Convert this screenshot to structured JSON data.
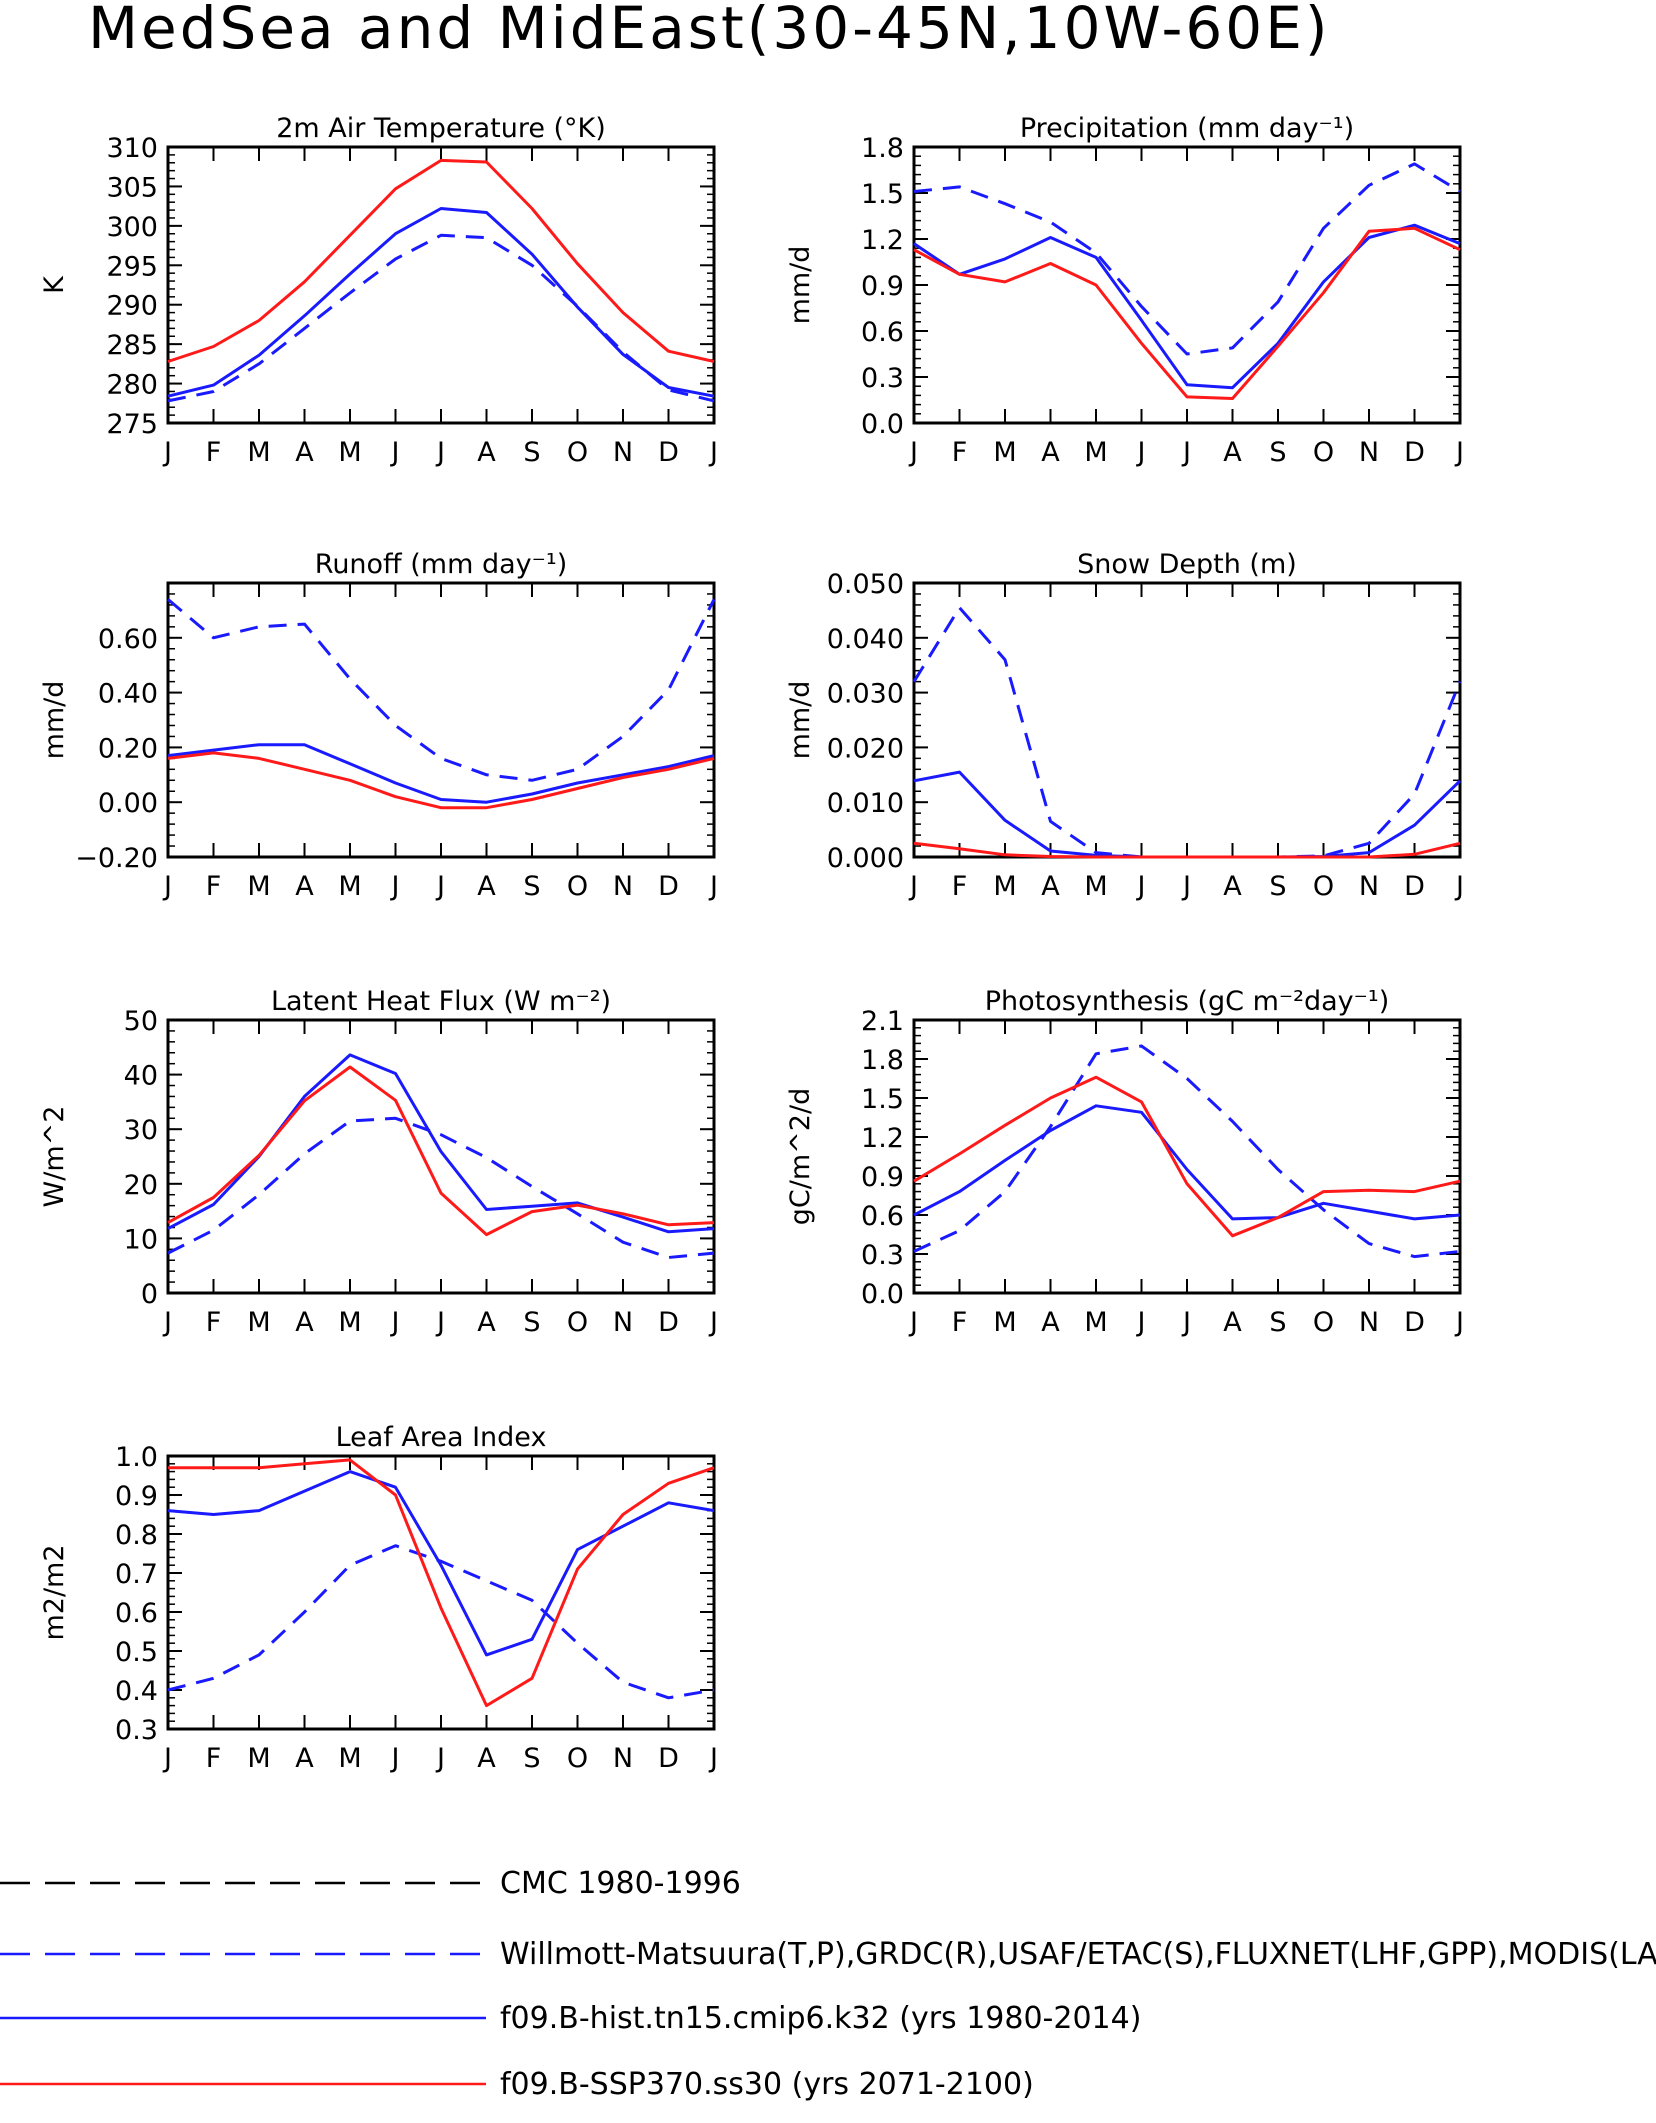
{
  "page_title": "MedSea and MidEast(30-45N,10W-60E)",
  "months": [
    "J",
    "F",
    "M",
    "A",
    "M",
    "J",
    "J",
    "A",
    "S",
    "O",
    "N",
    "D",
    "J"
  ],
  "colors": {
    "obs": "#1a1aff",
    "hist": "#1a1aff",
    "ssp": "#ff1a1a",
    "cmc": "#000000"
  },
  "legend": [
    {
      "label": "CMC 1980-1996",
      "color": "#000000",
      "dashed": true
    },
    {
      "label": "Willmott-Matsuura(T,P),GRDC(R),USAF/ETAC(S),FLUXNET(LHF,GPP),MODIS(LAI)",
      "color": "#1a1aff",
      "dashed": true
    },
    {
      "label": "f09.B-hist.tn15.cmip6.k32 (yrs 1980-2014)",
      "color": "#1a1aff",
      "dashed": false
    },
    {
      "label": "f09.B-SSP370.ss30 (yrs 2071-2100)",
      "color": "#ff1a1a",
      "dashed": false
    }
  ],
  "chart_data": [
    {
      "type": "line",
      "title": "2m Air Temperature (°K)",
      "ylabel": "K",
      "ylim": [
        275,
        310
      ],
      "yticks": [
        "275",
        "280",
        "285",
        "290",
        "295",
        "300",
        "305",
        "310"
      ],
      "categories": [
        "J",
        "F",
        "M",
        "A",
        "M",
        "J",
        "J",
        "A",
        "S",
        "O",
        "N",
        "D",
        "J"
      ],
      "series": [
        {
          "role": "obs",
          "values": [
            277.8,
            279.0,
            282.5,
            287.0,
            291.5,
            295.8,
            298.8,
            298.5,
            295.0,
            289.8,
            284.0,
            279.2,
            277.8
          ]
        },
        {
          "role": "hist",
          "values": [
            278.4,
            279.8,
            283.6,
            288.6,
            293.9,
            299.0,
            302.2,
            301.7,
            296.4,
            289.7,
            283.7,
            279.5,
            278.4
          ]
        },
        {
          "role": "ssp",
          "values": [
            282.8,
            284.7,
            288.0,
            292.9,
            298.8,
            304.7,
            308.3,
            308.1,
            302.2,
            295.2,
            289.0,
            284.1,
            282.8
          ]
        }
      ]
    },
    {
      "type": "line",
      "title": "Precipitation (mm day⁻¹)",
      "ylabel": "mm/d",
      "ylim": [
        0,
        1.8
      ],
      "yticks": [
        "0.0",
        "0.3",
        "0.6",
        "0.9",
        "1.2",
        "1.5",
        "1.8"
      ],
      "categories": [
        "J",
        "F",
        "M",
        "A",
        "M",
        "J",
        "J",
        "A",
        "S",
        "O",
        "N",
        "D",
        "J"
      ],
      "series": [
        {
          "role": "obs",
          "values": [
            1.51,
            1.54,
            1.43,
            1.31,
            1.11,
            0.76,
            0.45,
            0.49,
            0.79,
            1.27,
            1.55,
            1.69,
            1.51
          ]
        },
        {
          "role": "hist",
          "values": [
            1.17,
            0.97,
            1.07,
            1.21,
            1.08,
            0.67,
            0.25,
            0.23,
            0.52,
            0.92,
            1.21,
            1.29,
            1.17
          ]
        },
        {
          "role": "ssp",
          "values": [
            1.13,
            0.97,
            0.92,
            1.04,
            0.9,
            0.52,
            0.17,
            0.16,
            0.5,
            0.85,
            1.25,
            1.27,
            1.13
          ]
        }
      ]
    },
    {
      "type": "line",
      "title": "Runoff (mm day⁻¹)",
      "ylabel": "mm/d",
      "ylim": [
        -0.2,
        0.8
      ],
      "yticks": [
        "−0.20",
        "0.00",
        "0.20",
        "0.40",
        "0.60"
      ],
      "ytickvals": [
        -0.2,
        0,
        0.2,
        0.4,
        0.6
      ],
      "categories": [
        "J",
        "F",
        "M",
        "A",
        "M",
        "J",
        "J",
        "A",
        "S",
        "O",
        "N",
        "D",
        "J"
      ],
      "series": [
        {
          "role": "obs",
          "values": [
            0.74,
            0.6,
            0.64,
            0.65,
            0.45,
            0.28,
            0.16,
            0.1,
            0.08,
            0.12,
            0.24,
            0.41,
            0.74
          ]
        },
        {
          "role": "hist",
          "values": [
            0.17,
            0.19,
            0.21,
            0.21,
            0.14,
            0.07,
            0.01,
            0.0,
            0.03,
            0.07,
            0.1,
            0.13,
            0.17
          ]
        },
        {
          "role": "ssp",
          "values": [
            0.16,
            0.18,
            0.16,
            0.12,
            0.08,
            0.02,
            -0.02,
            -0.02,
            0.01,
            0.05,
            0.09,
            0.12,
            0.16
          ]
        }
      ]
    },
    {
      "type": "line",
      "title": "Snow Depth (m)",
      "ylabel": "mm/d",
      "ylim": [
        0,
        0.05
      ],
      "yticks": [
        "0.000",
        "0.010",
        "0.020",
        "0.030",
        "0.040",
        "0.050"
      ],
      "categories": [
        "J",
        "F",
        "M",
        "A",
        "M",
        "J",
        "J",
        "A",
        "S",
        "O",
        "N",
        "D",
        "J"
      ],
      "series": [
        {
          "role": "obs",
          "values": [
            0.032,
            0.0455,
            0.036,
            0.0065,
            0.0008,
            0.0,
            0.0,
            0.0,
            0.0,
            0.0002,
            0.0025,
            0.0115,
            0.032
          ]
        },
        {
          "role": "hist",
          "values": [
            0.0139,
            0.0155,
            0.0067,
            0.0011,
            0.0003,
            0.0,
            0.0,
            0.0,
            0.0,
            0.0001,
            0.0008,
            0.0058,
            0.0139
          ]
        },
        {
          "role": "ssp",
          "values": [
            0.0025,
            0.0015,
            0.0004,
            0.0001,
            0.0,
            0.0,
            0.0,
            0.0,
            0.0,
            0.0,
            0.0,
            0.0005,
            0.0025
          ]
        }
      ]
    },
    {
      "type": "line",
      "title": "Latent Heat Flux (W m⁻²)",
      "ylabel": "W/m^2",
      "ylim": [
        0,
        50
      ],
      "yticks": [
        "0",
        "10",
        "20",
        "30",
        "40",
        "50"
      ],
      "categories": [
        "J",
        "F",
        "M",
        "A",
        "M",
        "J",
        "J",
        "A",
        "S",
        "O",
        "N",
        "D",
        "J"
      ],
      "series": [
        {
          "role": "obs",
          "values": [
            7.3,
            11.5,
            18.0,
            25.5,
            31.5,
            32.0,
            29.0,
            24.8,
            19.5,
            14.5,
            9.3,
            6.5,
            7.3
          ]
        },
        {
          "role": "hist",
          "values": [
            11.8,
            16.2,
            25.0,
            36.0,
            43.6,
            40.2,
            25.9,
            15.3,
            15.9,
            16.5,
            13.9,
            11.2,
            11.8
          ]
        },
        {
          "role": "ssp",
          "values": [
            12.9,
            17.5,
            25.2,
            35.2,
            41.4,
            35.3,
            18.3,
            10.7,
            14.9,
            16.1,
            14.5,
            12.5,
            12.9
          ]
        }
      ]
    },
    {
      "type": "line",
      "title": "Photosynthesis (gC m⁻²day⁻¹)",
      "ylabel": "gC/m^2/d",
      "ylim": [
        0,
        2.1
      ],
      "yticks": [
        "0.0",
        "0.3",
        "0.6",
        "0.9",
        "1.2",
        "1.5",
        "1.8",
        "2.1"
      ],
      "categories": [
        "J",
        "F",
        "M",
        "A",
        "M",
        "J",
        "J",
        "A",
        "S",
        "O",
        "N",
        "D",
        "J"
      ],
      "series": [
        {
          "role": "obs",
          "values": [
            0.32,
            0.48,
            0.78,
            1.28,
            1.84,
            1.9,
            1.65,
            1.32,
            0.95,
            0.64,
            0.38,
            0.28,
            0.32
          ]
        },
        {
          "role": "hist",
          "values": [
            0.6,
            0.78,
            1.02,
            1.25,
            1.44,
            1.39,
            0.95,
            0.57,
            0.58,
            0.69,
            0.63,
            0.57,
            0.6
          ]
        },
        {
          "role": "ssp",
          "values": [
            0.86,
            1.07,
            1.29,
            1.5,
            1.66,
            1.47,
            0.84,
            0.44,
            0.58,
            0.78,
            0.79,
            0.78,
            0.86
          ]
        }
      ]
    },
    {
      "type": "line",
      "title": "Leaf Area Index",
      "ylabel": "m2/m2",
      "ylim": [
        0.3,
        1.0
      ],
      "yticks": [
        "0.3",
        "0.4",
        "0.5",
        "0.6",
        "0.7",
        "0.8",
        "0.9",
        "1.0"
      ],
      "categories": [
        "J",
        "F",
        "M",
        "A",
        "M",
        "J",
        "J",
        "A",
        "S",
        "O",
        "N",
        "D",
        "J"
      ],
      "series": [
        {
          "role": "obs",
          "values": [
            0.4,
            0.43,
            0.49,
            0.6,
            0.72,
            0.77,
            0.73,
            0.68,
            0.63,
            0.52,
            0.42,
            0.38,
            0.4
          ]
        },
        {
          "role": "hist",
          "values": [
            0.86,
            0.85,
            0.86,
            0.91,
            0.96,
            0.92,
            0.72,
            0.49,
            0.53,
            0.76,
            0.82,
            0.88,
            0.86
          ]
        },
        {
          "role": "ssp",
          "values": [
            0.97,
            0.97,
            0.97,
            0.98,
            0.99,
            0.9,
            0.61,
            0.36,
            0.43,
            0.71,
            0.85,
            0.93,
            0.97
          ]
        }
      ]
    }
  ]
}
